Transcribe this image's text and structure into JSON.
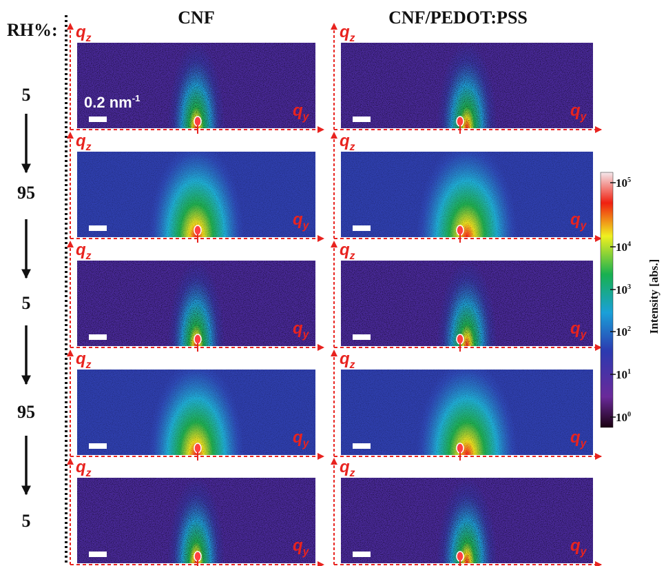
{
  "header": {
    "rh_label": "RH%:",
    "columns": [
      "CNF",
      "CNF/PEDOT:PSS"
    ]
  },
  "rows": [
    "5",
    "95",
    "5",
    "95",
    "5"
  ],
  "axes": {
    "vertical": {
      "base": "q",
      "sub": "z"
    },
    "horizontal": {
      "base": "q",
      "sub": "y"
    }
  },
  "scale_bar": {
    "base": "0.2 nm",
    "sup": "-1"
  },
  "colorbar": {
    "label": "Intensity [abs.]",
    "ticks": [
      {
        "base": "10",
        "sup": "5"
      },
      {
        "base": "10",
        "sup": "4"
      },
      {
        "base": "10",
        "sup": "3"
      },
      {
        "base": "10",
        "sup": "2"
      },
      {
        "base": "10",
        "sup": "1"
      },
      {
        "base": "10",
        "sup": "0"
      }
    ]
  }
}
